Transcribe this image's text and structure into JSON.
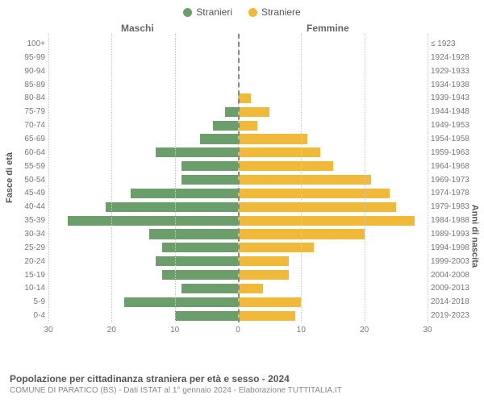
{
  "legend": {
    "male_label": "Stranieri",
    "female_label": "Straniere",
    "male_color": "#6b9e6b",
    "female_color": "#f0b93a"
  },
  "headers": {
    "male": "Maschi",
    "female": "Femmine"
  },
  "axis": {
    "y_left_title": "Fasce di età",
    "y_right_title": "Anni di nascita",
    "x_max": 30,
    "x_ticks_left": [
      30,
      20,
      10,
      0
    ],
    "x_ticks_right": [
      10,
      20,
      30
    ]
  },
  "pyramid": {
    "type": "population-pyramid",
    "rows": [
      {
        "age": "100+",
        "year": "≤ 1923",
        "m": 0,
        "f": 0
      },
      {
        "age": "95-99",
        "year": "1924-1928",
        "m": 0,
        "f": 0
      },
      {
        "age": "90-94",
        "year": "1929-1933",
        "m": 0,
        "f": 0
      },
      {
        "age": "85-89",
        "year": "1934-1938",
        "m": 0,
        "f": 0
      },
      {
        "age": "80-84",
        "year": "1939-1943",
        "m": 0,
        "f": 2
      },
      {
        "age": "75-79",
        "year": "1944-1948",
        "m": 2,
        "f": 5
      },
      {
        "age": "70-74",
        "year": "1949-1953",
        "m": 4,
        "f": 3
      },
      {
        "age": "65-69",
        "year": "1954-1958",
        "m": 6,
        "f": 11
      },
      {
        "age": "60-64",
        "year": "1959-1963",
        "m": 13,
        "f": 13
      },
      {
        "age": "55-59",
        "year": "1964-1968",
        "m": 9,
        "f": 15
      },
      {
        "age": "50-54",
        "year": "1969-1973",
        "m": 9,
        "f": 21
      },
      {
        "age": "45-49",
        "year": "1974-1978",
        "m": 17,
        "f": 24
      },
      {
        "age": "40-44",
        "year": "1979-1983",
        "m": 21,
        "f": 25
      },
      {
        "age": "35-39",
        "year": "1984-1988",
        "m": 27,
        "f": 28
      },
      {
        "age": "30-34",
        "year": "1989-1993",
        "m": 14,
        "f": 20
      },
      {
        "age": "25-29",
        "year": "1994-1998",
        "m": 12,
        "f": 12
      },
      {
        "age": "20-24",
        "year": "1999-2003",
        "m": 13,
        "f": 8
      },
      {
        "age": "15-19",
        "year": "2004-2008",
        "m": 12,
        "f": 8
      },
      {
        "age": "10-14",
        "year": "2009-2013",
        "m": 9,
        "f": 4
      },
      {
        "age": "5-9",
        "year": "2014-2018",
        "m": 18,
        "f": 10
      },
      {
        "age": "0-4",
        "year": "2019-2023",
        "m": 10,
        "f": 9
      }
    ]
  },
  "colors": {
    "grid": "#cccccc",
    "center_axis": "#888888",
    "background": "#ffffff",
    "text": "#666666"
  },
  "footer": {
    "title": "Popolazione per cittadinanza straniera per età e sesso - 2024",
    "sub": "COMUNE DI PARATICO (BS) - Dati ISTAT al 1° gennaio 2024 - Elaborazione TUTTITALIA.IT"
  }
}
